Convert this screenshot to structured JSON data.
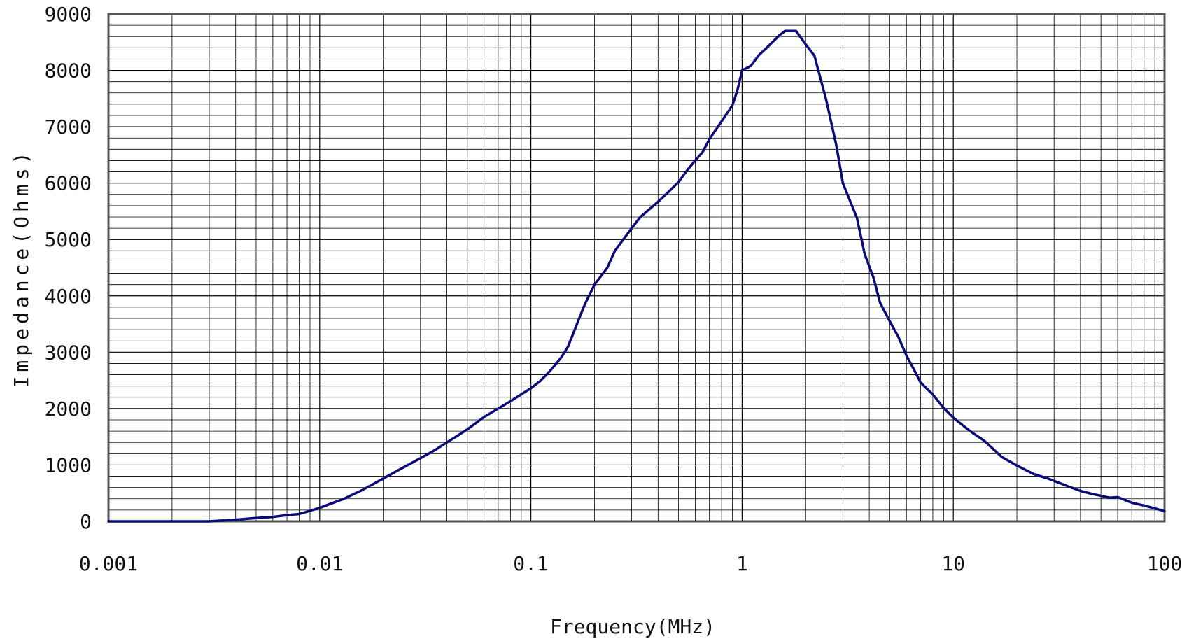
{
  "chart_data": {
    "type": "line",
    "title": "",
    "xlabel": "Frequency(MHz)",
    "ylabel": "Impedance(Ohms)",
    "x_scale": "log",
    "xlim": [
      0.001,
      100
    ],
    "ylim": [
      0,
      9000
    ],
    "x_ticks": [
      0.001,
      0.01,
      0.1,
      1,
      10,
      100
    ],
    "x_tick_labels": [
      "0.001",
      "0.01",
      "0.1",
      "1",
      "10",
      "100"
    ],
    "y_ticks": [
      0,
      1000,
      2000,
      3000,
      4000,
      5000,
      6000,
      7000,
      8000,
      9000
    ],
    "y_tick_labels": [
      "0",
      "1000",
      "2000",
      "3000",
      "4000",
      "5000",
      "6000",
      "7000",
      "8000",
      "9000"
    ],
    "y_minor_step": 200,
    "grid": true,
    "legend": "none",
    "line_color": "#0a0a78",
    "grid_color": "#000000",
    "series": [
      {
        "x": [
          0.001,
          0.002,
          0.003,
          0.004,
          0.005,
          0.006,
          0.007,
          0.008,
          0.01,
          0.013,
          0.016,
          0.02,
          0.025,
          0.03,
          0.035,
          0.04,
          0.045,
          0.05,
          0.06,
          0.07,
          0.08,
          0.1,
          0.11,
          0.12,
          0.13,
          0.14,
          0.15,
          0.18,
          0.2,
          0.23,
          0.25,
          0.3,
          0.33,
          0.4,
          0.45,
          0.5,
          0.55,
          0.6,
          0.65,
          0.7,
          0.8,
          0.9,
          0.95,
          1.0,
          1.05,
          1.1,
          1.2,
          1.3,
          1.4,
          1.5,
          1.6,
          1.8,
          2.0,
          2.2,
          2.5,
          2.8,
          3.0,
          3.5,
          3.8,
          4.2,
          4.5,
          5.0,
          5.5,
          6.0,
          6.5,
          7.0,
          8.0,
          9.0,
          10,
          12,
          14,
          17,
          20,
          24,
          28,
          35,
          40,
          45,
          55,
          60,
          70,
          80,
          90,
          100
        ],
        "values": [
          0,
          0,
          0,
          30,
          60,
          80,
          110,
          130,
          240,
          400,
          560,
          760,
          960,
          1120,
          1260,
          1400,
          1520,
          1630,
          1850,
          2000,
          2130,
          2360,
          2480,
          2620,
          2770,
          2920,
          3100,
          3850,
          4200,
          4500,
          4800,
          5200,
          5400,
          5670,
          5850,
          6020,
          6230,
          6400,
          6550,
          6780,
          7100,
          7380,
          7650,
          8000,
          8040,
          8080,
          8270,
          8390,
          8510,
          8620,
          8700,
          8700,
          8460,
          8260,
          7480,
          6650,
          6000,
          5380,
          4750,
          4310,
          3880,
          3550,
          3270,
          2940,
          2700,
          2460,
          2250,
          2010,
          1840,
          1600,
          1430,
          1140,
          990,
          840,
          760,
          620,
          540,
          490,
          420,
          430,
          330,
          280,
          230,
          180
        ]
      }
    ]
  }
}
